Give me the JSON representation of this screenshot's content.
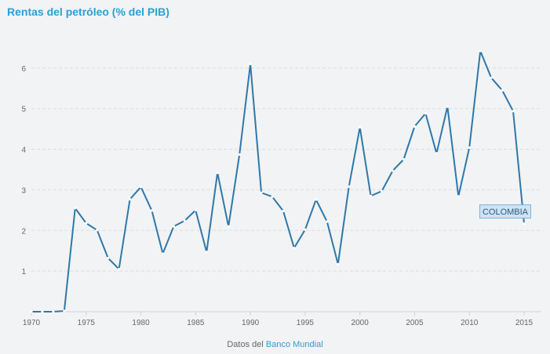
{
  "chart_data": {
    "type": "line",
    "title": "Rentas del petróleo (% del PIB)",
    "x": [
      1970,
      1971,
      1972,
      1973,
      1974,
      1975,
      1976,
      1977,
      1978,
      1979,
      1980,
      1981,
      1982,
      1983,
      1984,
      1985,
      1986,
      1987,
      1988,
      1989,
      1990,
      1991,
      1992,
      1993,
      1994,
      1995,
      1996,
      1997,
      1998,
      1999,
      2000,
      2001,
      2002,
      2003,
      2004,
      2005,
      2006,
      2007,
      2008,
      2009,
      2010,
      2011,
      2012,
      2013,
      2014,
      2015
    ],
    "series": [
      {
        "name": "COLOMBIA",
        "color": "#2e78a8",
        "values": [
          0.0,
          0.0,
          0.0,
          0.02,
          2.55,
          2.18,
          2.01,
          1.32,
          1.05,
          2.77,
          3.07,
          2.49,
          1.43,
          2.1,
          2.24,
          2.5,
          1.47,
          3.42,
          2.1,
          3.87,
          6.1,
          2.93,
          2.83,
          2.48,
          1.57,
          2.02,
          2.76,
          2.22,
          1.17,
          3.08,
          4.54,
          2.85,
          2.97,
          3.47,
          3.75,
          4.56,
          4.88,
          3.9,
          5.05,
          2.84,
          4.04,
          6.42,
          5.76,
          5.45,
          4.94,
          2.17
        ]
      }
    ],
    "x_ticks": [
      "1970",
      "1975",
      "1980",
      "1985",
      "1990",
      "1995",
      "2000",
      "2005",
      "2010",
      "2015"
    ],
    "y_ticks": [
      "1",
      "2",
      "3",
      "4",
      "5",
      "6"
    ],
    "ylim": [
      0,
      7
    ],
    "xlim": [
      1970,
      2015
    ],
    "grid": true,
    "series_label": "COLOMBIA"
  },
  "footer": {
    "prefix": "Datos del",
    "link": "Banco Mundial"
  }
}
